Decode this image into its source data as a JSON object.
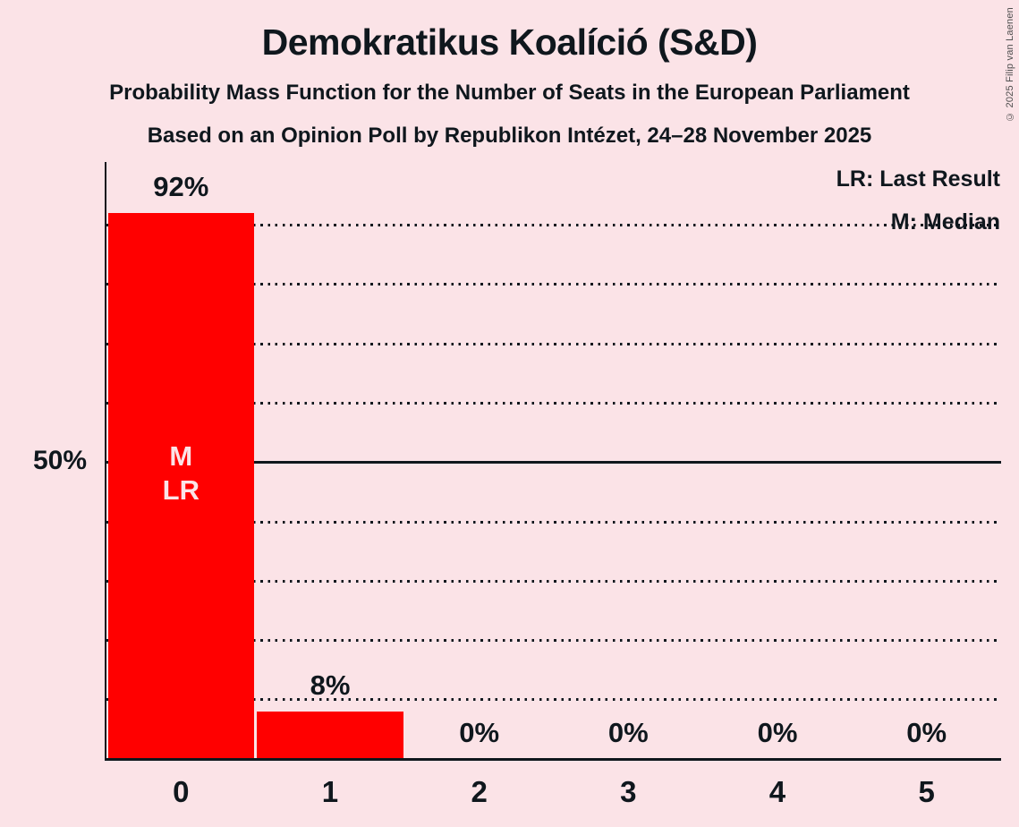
{
  "copyright": "© 2025 Filip van Laenen",
  "legend": {
    "last_result": "LR: Last Result",
    "median": "M: Median"
  },
  "chart_data": {
    "type": "bar",
    "title": "Demokratikus Koalíció (S&D)",
    "subtitle1": "Probability Mass Function for the Number of Seats in the European Parliament",
    "subtitle2": "Based on an Opinion Poll by Republikon Intézet, 24–28 November 2025",
    "categories": [
      "0",
      "1",
      "2",
      "3",
      "4",
      "5"
    ],
    "values": [
      92,
      8,
      0,
      0,
      0,
      0
    ],
    "value_labels": [
      "92%",
      "8%",
      "0%",
      "0%",
      "0%",
      "0%"
    ],
    "ylim": [
      0,
      100
    ],
    "gridline_interval_percent": 10,
    "solid_line_at_percent": 50,
    "y_tick": {
      "value": 50,
      "label": "50%"
    },
    "annotation": {
      "category_index": 0,
      "lines": [
        "M",
        "LR"
      ]
    },
    "legend_position": "top-right",
    "grid": true,
    "colors": {
      "bar": "#ff0000",
      "background": "#fbe3e7",
      "text": "#0f171d",
      "annotation_text": "#fbe3e7",
      "bar_gap": "#ffffff"
    }
  }
}
